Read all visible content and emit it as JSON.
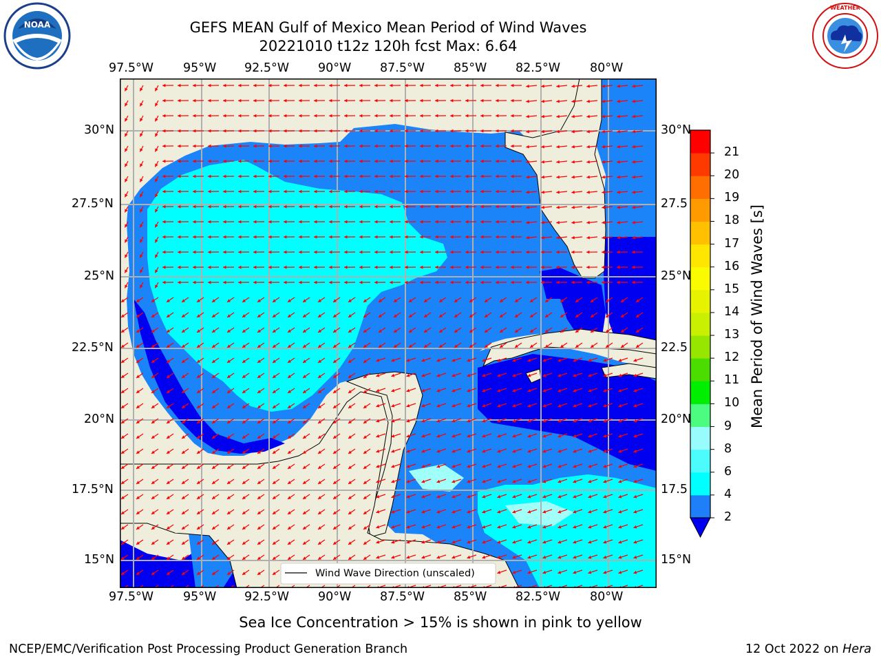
{
  "title": {
    "line1": "GEFS MEAN Gulf of Mexico Mean Period of Wind Waves",
    "line2": "20221010 t12z 120h fcst   Max: 6.64"
  },
  "logos": {
    "left": "NOAA",
    "right": "NATIONAL WEATHER SERVICE"
  },
  "map": {
    "lon_labels": [
      "97.5°W",
      "95°W",
      "92.5°W",
      "90°W",
      "87.5°W",
      "85°W",
      "82.5°W",
      "80°W"
    ],
    "lat_labels": [
      "30°N",
      "27.5°N",
      "25°N",
      "22.5°N",
      "20°N",
      "17.5°N",
      "15°N"
    ],
    "right_lat_labels": [
      "30°N",
      "27.5",
      "25°N",
      "22.5",
      "20°N",
      "17.5",
      "15°N"
    ],
    "legend_label": "Wind Wave Direction (unscaled)",
    "colors": {
      "land": "#efeedc",
      "shelf": "#0000f0",
      "gulf": "#1a84f8",
      "basin": "#00ffff",
      "pale": "#a0fff8",
      "arrow": "#ff0000"
    }
  },
  "colorbar": {
    "title": "Mean Period of Wind Waves [s]",
    "tick_labels": [
      "2",
      "4",
      "6",
      "8",
      "9",
      "10",
      "11",
      "12",
      "13",
      "14",
      "15",
      "16",
      "17",
      "18",
      "19",
      "20",
      "21"
    ],
    "colors": [
      "#1f7ff8",
      "#00ffff",
      "#4cfcfc",
      "#99fcfc",
      "#4cfc80",
      "#00ee00",
      "#4bdc00",
      "#96e600",
      "#c8f000",
      "#e6f200",
      "#fafa00",
      "#ffe600",
      "#ffc000",
      "#ff9a00",
      "#ff6e00",
      "#ff3a00",
      "#ff0000"
    ],
    "extend_color": "#0000f0"
  },
  "note": "Sea Ice Concentration > 15% is shown in pink to yellow",
  "footer": {
    "left": "NCEP/EMC/Verification Post Processing Product Generation Branch",
    "date": "12 Oct 2022 on",
    "machine": "Hera"
  }
}
